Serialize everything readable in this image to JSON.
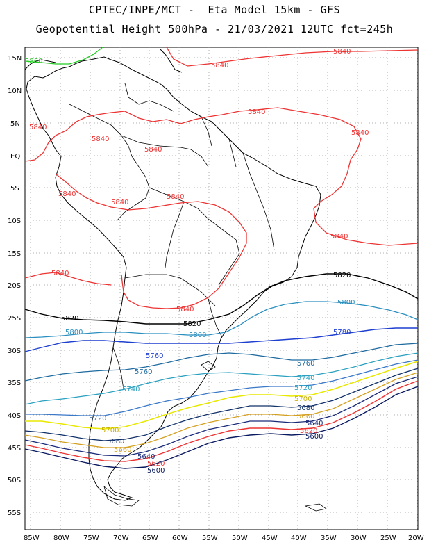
{
  "title_line1": "CPTEC/INPE/MCT -  Eta Model 15km - GFS",
  "title_line2": "Geopotential Height 500hPa - 21/03/2021 12UTC fct=245h",
  "lat_ticks": [
    "15N",
    "10N",
    "5N",
    "EQ",
    "5S",
    "10S",
    "15S",
    "20S",
    "25S",
    "30S",
    "35S",
    "40S",
    "45S",
    "50S",
    "55S"
  ],
  "lon_ticks": [
    "85W",
    "80W",
    "75W",
    "70W",
    "65W",
    "60W",
    "55W",
    "50W",
    "45W",
    "40W",
    "35W",
    "30W",
    "25W",
    "20W"
  ],
  "contours": [
    {
      "level": 5860,
      "color": "#22cc22"
    },
    {
      "level": 5840,
      "color": "#ee3333"
    },
    {
      "level": 5820,
      "color": "#000000"
    },
    {
      "level": 5800,
      "color": "#2a8fbf"
    },
    {
      "level": 5780,
      "color": "#1f3fd0"
    },
    {
      "level": 5760,
      "color": "#1e6aa0"
    },
    {
      "level": 5740,
      "color": "#2aa0c0"
    },
    {
      "level": 5720,
      "color": "#3a78c8"
    },
    {
      "level": 5700,
      "color": "#e8e800"
    },
    {
      "level": 5680,
      "color": "#10306a"
    },
    {
      "level": 5660,
      "color": "#d4a020"
    },
    {
      "level": 5640,
      "color": "#1a2a7a"
    },
    {
      "level": 5620,
      "color": "#ee3333"
    },
    {
      "level": 5600,
      "color": "#0a1a60"
    }
  ],
  "labels": [
    {
      "text": "5860",
      "color": "#22cc22"
    },
    {
      "text": "5840",
      "color": "#ee3333"
    },
    {
      "text": "5820",
      "color": "#000000"
    },
    {
      "text": "5800",
      "color": "#2a8fbf"
    },
    {
      "text": "5780",
      "color": "#1f3fd0"
    },
    {
      "text": "5760",
      "color": "#1e6aa0"
    },
    {
      "text": "5740",
      "color": "#2aa0c0"
    },
    {
      "text": "5720",
      "color": "#3a78c8"
    },
    {
      "text": "5700",
      "color": "#c8b000"
    },
    {
      "text": "5680",
      "color": "#10306a"
    },
    {
      "text": "5660",
      "color": "#d4a020"
    },
    {
      "text": "5640",
      "color": "#1a2a7a"
    },
    {
      "text": "5620",
      "color": "#ee3333"
    },
    {
      "text": "5600",
      "color": "#0a1a60"
    }
  ]
}
